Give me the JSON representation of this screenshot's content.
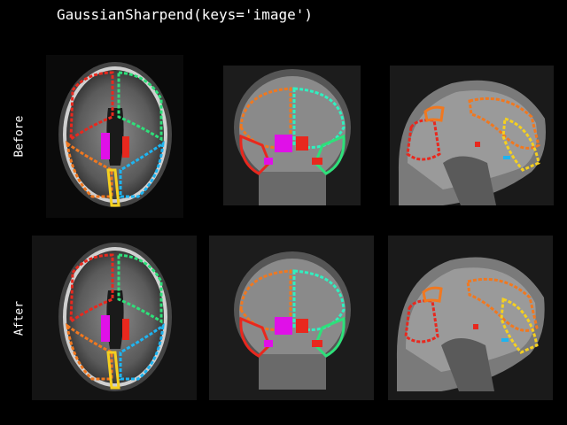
{
  "figure": {
    "title": "GaussianSharpend(keys='image')",
    "rows": [
      {
        "label": "Before"
      },
      {
        "label": "After"
      }
    ],
    "views": [
      "axial",
      "coronal",
      "sagittal"
    ]
  },
  "colors": {
    "background": "#000000",
    "text": "#ffffff",
    "seg_red": "#e8281e",
    "seg_orange": "#f07820",
    "seg_yellow": "#f5d020",
    "seg_green": "#2ee07a",
    "seg_cyan": "#1eb4f0",
    "seg_magenta": "#e010e8",
    "seg_aqua": "#30f0c0"
  }
}
